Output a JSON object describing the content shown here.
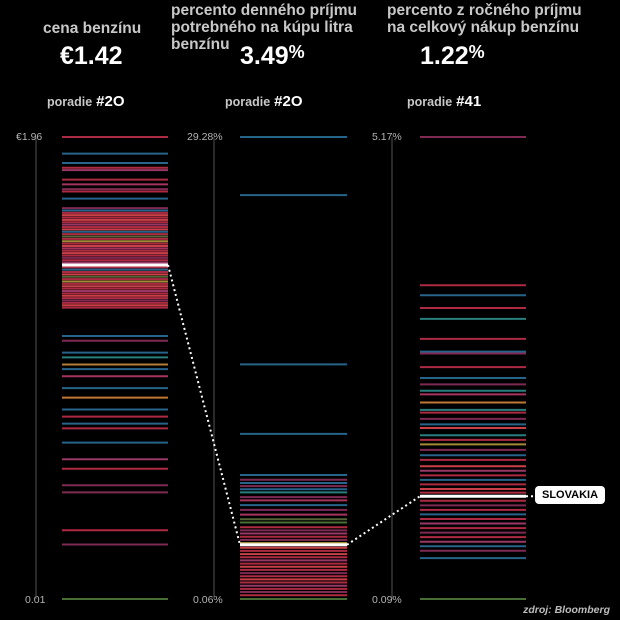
{
  "panels": [
    {
      "title": "cena benzínu",
      "value": "€1.42",
      "rank_label": "poradie",
      "rank_value": "#2O",
      "axis_top": "€1.96",
      "axis_bottom": "0.01"
    },
    {
      "title": "percento denného príjmu potrebného na kúpu litra benzínu",
      "value": "3.49",
      "value_suffix": "%",
      "rank_label": "poradie",
      "rank_value": "#2O",
      "axis_top": "29.28%",
      "axis_bottom": "0.06%"
    },
    {
      "title": "percento z ročného príjmu na celkový nákup benzínu",
      "value": "1.22",
      "value_suffix": "%",
      "rank_label": "poradie",
      "rank_value": "#41",
      "axis_top": "5.17%",
      "axis_bottom": "0.09%"
    }
  ],
  "highlight_label": "SLOVAKIA",
  "source": "zdroj: Bloomberg",
  "chart_data": [
    {
      "type": "strip",
      "name": "cena benzínu",
      "ylim": [
        0.01,
        1.96
      ],
      "highlight": 1.42,
      "values": [
        1.96,
        1.89,
        1.85,
        1.83,
        1.82,
        1.78,
        1.76,
        1.74,
        1.73,
        1.7,
        1.66,
        1.65,
        1.64,
        1.63,
        1.62,
        1.61,
        1.6,
        1.59,
        1.58,
        1.57,
        1.56,
        1.55,
        1.54,
        1.53,
        1.52,
        1.51,
        1.5,
        1.49,
        1.48,
        1.47,
        1.46,
        1.45,
        1.44,
        1.43,
        1.42,
        1.41,
        1.4,
        1.39,
        1.38,
        1.37,
        1.36,
        1.35,
        1.34,
        1.33,
        1.32,
        1.31,
        1.3,
        1.29,
        1.28,
        1.27,
        1.26,
        1.25,
        1.24,
        1.12,
        1.1,
        1.05,
        1.03,
        1.0,
        0.98,
        0.95,
        0.9,
        0.86,
        0.81,
        0.78,
        0.75,
        0.73,
        0.67,
        0.6,
        0.56,
        0.49,
        0.46,
        0.3,
        0.24,
        0.01
      ],
      "colors": [
        "#c0304a",
        "#2b6f9a",
        "#2b6f9a",
        "#c0304a",
        "#a83f72",
        "#c0304a",
        "#b83a6a",
        "#8c2f5c",
        "#c0304a",
        "#2b6f9a",
        "#8c2f5c",
        "#2b6f9a",
        "#c0304a",
        "#e04850",
        "#c0304a",
        "#e04850",
        "#c0304a",
        "#a83f72",
        "#c0304a",
        "#e04850",
        "#2b6f9a",
        "#c0304a",
        "#5f6f3a",
        "#c0304a",
        "#b59a3c",
        "#c0304a",
        "#e04850",
        "#b83a6a",
        "#c0304a",
        "#e04850",
        "#c0304a",
        "#8c2f5c",
        "#c0304a",
        "#a83f72",
        "#ffffff",
        "#c0304a",
        "#2b6f9a",
        "#c0304a",
        "#e04850",
        "#5f6f3a",
        "#c0304a",
        "#b59a3c",
        "#c0304a",
        "#e04850",
        "#c0304a",
        "#a83f72",
        "#c0304a",
        "#e04850",
        "#c0304a",
        "#8c2f5c",
        "#c0304a",
        "#e04850",
        "#c0304a",
        "#2b6f9a",
        "#8c2f5c",
        "#2b6f9a",
        "#2e8c8c",
        "#c88a3a",
        "#2b6f9a",
        "#b83a6a",
        "#2b6f9a",
        "#d8843a",
        "#2b6f9a",
        "#c0304a",
        "#2b6f9a",
        "#c0304a",
        "#2b6f9a",
        "#a83f72",
        "#c0304a",
        "#8c2f5c",
        "#8c2f5c",
        "#c0304a",
        "#8c2f5c",
        "#4f7a3a"
      ]
    },
    {
      "type": "strip",
      "name": "percento denného príjmu potrebného na kúpu litra benzínu",
      "ylim": [
        0.06,
        29.28
      ],
      "highlight": 3.49,
      "values": [
        29.28,
        25.6,
        14.9,
        10.5,
        7.9,
        7.6,
        7.4,
        7.2,
        7.0,
        6.8,
        6.5,
        6.3,
        6.0,
        5.7,
        5.4,
        5.1,
        4.9,
        4.6,
        4.4,
        4.2,
        4.0,
        3.8,
        3.6,
        3.49,
        3.3,
        3.1,
        2.9,
        2.7,
        2.5,
        2.3,
        2.1,
        1.9,
        1.7,
        1.5,
        1.3,
        1.1,
        0.9,
        0.7,
        0.5,
        0.3,
        0.06
      ],
      "colors": [
        "#2b6f9a",
        "#2b6f9a",
        "#2b6f9a",
        "#2b6f9a",
        "#2b6f9a",
        "#8c2f5c",
        "#2b6f9a",
        "#8c2f5c",
        "#2b6f9a",
        "#2e8c8c",
        "#8c2f5c",
        "#b83a6a",
        "#2b6f9a",
        "#8c2f5c",
        "#b83a6a",
        "#5f6f3a",
        "#4f7a3a",
        "#c0304a",
        "#8c2f5c",
        "#a83f72",
        "#c0304a",
        "#8c2f5c",
        "#b59a3c",
        "#ffffff",
        "#e04850",
        "#c0304a",
        "#e04850",
        "#c0304a",
        "#a83f72",
        "#c0304a",
        "#e04850",
        "#c0304a",
        "#8c2f5c",
        "#c0304a",
        "#e04850",
        "#c0304a",
        "#a83f72",
        "#c0304a",
        "#8c2f5c",
        "#c0304a",
        "#4f7a3a"
      ]
    },
    {
      "type": "strip",
      "name": "percento z ročného príjmu na celkový nákup benzínu",
      "ylim": [
        0.09,
        5.17
      ],
      "highlight": 1.22,
      "values": [
        5.17,
        3.54,
        3.43,
        3.29,
        3.17,
        2.95,
        2.81,
        2.79,
        2.64,
        2.52,
        2.45,
        2.38,
        2.34,
        2.25,
        2.17,
        2.14,
        2.07,
        2.01,
        1.97,
        1.89,
        1.84,
        1.79,
        1.73,
        1.67,
        1.62,
        1.55,
        1.5,
        1.45,
        1.4,
        1.35,
        1.3,
        1.26,
        1.22,
        1.17,
        1.12,
        1.07,
        1.02,
        0.97,
        0.92,
        0.87,
        0.82,
        0.77,
        0.72,
        0.67,
        0.62,
        0.54,
        0.09
      ],
      "colors": [
        "#8c2f5c",
        "#c0304a",
        "#2b6f9a",
        "#c0304a",
        "#2e8c8c",
        "#c0304a",
        "#2b6f9a",
        "#8c2f5c",
        "#c0304a",
        "#2b6f9a",
        "#8c2f5c",
        "#2e8c8c",
        "#b83a6a",
        "#d8843a",
        "#2e8c8c",
        "#c0304a",
        "#8c2f5c",
        "#2b6f9a",
        "#e04850",
        "#2e8c8c",
        "#c0304a",
        "#b59a3c",
        "#8c2f5c",
        "#2b6f9a",
        "#c0304a",
        "#e04850",
        "#a83f72",
        "#c0304a",
        "#2b6f9a",
        "#c0304a",
        "#e04850",
        "#c0304a",
        "#ffffff",
        "#c0304a",
        "#8c2f5c",
        "#c0304a",
        "#2b6f9a",
        "#c0304a",
        "#a83f72",
        "#c0304a",
        "#8c2f5c",
        "#c0304a",
        "#a83f72",
        "#2b6f9a",
        "#8c2f5c",
        "#2b6f9a",
        "#4f7a3a"
      ]
    }
  ]
}
